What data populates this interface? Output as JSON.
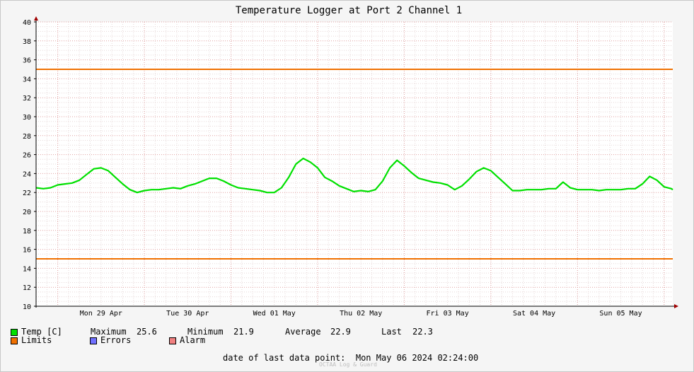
{
  "chart_data": {
    "type": "line",
    "title": "Temperature Logger at Port 2 Channel 1",
    "xlabel": "",
    "ylabel": "",
    "ylim": [
      10,
      40
    ],
    "y_ticks": [
      10,
      12,
      14,
      16,
      18,
      20,
      22,
      24,
      26,
      28,
      30,
      32,
      34,
      36,
      38,
      40
    ],
    "x_start": "2024-04-28 18:00",
    "x_end": "2024-05-06 02:24",
    "x_ticks": [
      {
        "label": "Mon 29 Apr",
        "time": "2024-04-29 12:00"
      },
      {
        "label": "Tue 30 Apr",
        "time": "2024-04-30 12:00"
      },
      {
        "label": "Wed 01 May",
        "time": "2024-05-01 12:00"
      },
      {
        "label": "Thu 02 May",
        "time": "2024-05-02 12:00"
      },
      {
        "label": "Fri 03 May",
        "time": "2024-05-03 12:00"
      },
      {
        "label": "Sat 04 May",
        "time": "2024-05-04 12:00"
      },
      {
        "label": "Sun 05 May",
        "time": "2024-05-05 12:00"
      }
    ],
    "grid": true,
    "series": [
      {
        "name": "Temp [C]",
        "color": "#00e000",
        "points": [
          [
            "2024-04-28 18:00",
            22.5
          ],
          [
            "2024-04-28 20:00",
            22.4
          ],
          [
            "2024-04-28 22:00",
            22.5
          ],
          [
            "2024-04-29 00:00",
            22.8
          ],
          [
            "2024-04-29 02:00",
            22.9
          ],
          [
            "2024-04-29 04:00",
            23.0
          ],
          [
            "2024-04-29 06:00",
            23.3
          ],
          [
            "2024-04-29 08:00",
            23.9
          ],
          [
            "2024-04-29 10:00",
            24.5
          ],
          [
            "2024-04-29 12:00",
            24.6
          ],
          [
            "2024-04-29 14:00",
            24.3
          ],
          [
            "2024-04-29 16:00",
            23.6
          ],
          [
            "2024-04-29 18:00",
            22.9
          ],
          [
            "2024-04-29 20:00",
            22.3
          ],
          [
            "2024-04-29 22:00",
            22.0
          ],
          [
            "2024-04-30 00:00",
            22.2
          ],
          [
            "2024-04-30 02:00",
            22.3
          ],
          [
            "2024-04-30 04:00",
            22.3
          ],
          [
            "2024-04-30 06:00",
            22.4
          ],
          [
            "2024-04-30 08:00",
            22.5
          ],
          [
            "2024-04-30 10:00",
            22.4
          ],
          [
            "2024-04-30 12:00",
            22.7
          ],
          [
            "2024-04-30 14:00",
            22.9
          ],
          [
            "2024-04-30 16:00",
            23.2
          ],
          [
            "2024-04-30 18:00",
            23.5
          ],
          [
            "2024-04-30 20:00",
            23.5
          ],
          [
            "2024-04-30 22:00",
            23.2
          ],
          [
            "2024-05-01 00:00",
            22.8
          ],
          [
            "2024-05-01 02:00",
            22.5
          ],
          [
            "2024-05-01 04:00",
            22.4
          ],
          [
            "2024-05-01 06:00",
            22.3
          ],
          [
            "2024-05-01 08:00",
            22.2
          ],
          [
            "2024-05-01 10:00",
            22.0
          ],
          [
            "2024-05-01 12:00",
            22.0
          ],
          [
            "2024-05-01 14:00",
            22.5
          ],
          [
            "2024-05-01 16:00",
            23.6
          ],
          [
            "2024-05-01 18:00",
            25.0
          ],
          [
            "2024-05-01 20:00",
            25.6
          ],
          [
            "2024-05-01 22:00",
            25.2
          ],
          [
            "2024-05-02 00:00",
            24.6
          ],
          [
            "2024-05-02 02:00",
            23.6
          ],
          [
            "2024-05-02 04:00",
            23.2
          ],
          [
            "2024-05-02 06:00",
            22.7
          ],
          [
            "2024-05-02 08:00",
            22.4
          ],
          [
            "2024-05-02 10:00",
            22.1
          ],
          [
            "2024-05-02 12:00",
            22.2
          ],
          [
            "2024-05-02 14:00",
            22.1
          ],
          [
            "2024-05-02 16:00",
            22.3
          ],
          [
            "2024-05-02 18:00",
            23.2
          ],
          [
            "2024-05-02 20:00",
            24.6
          ],
          [
            "2024-05-02 22:00",
            25.4
          ],
          [
            "2024-05-03 00:00",
            24.8
          ],
          [
            "2024-05-03 02:00",
            24.1
          ],
          [
            "2024-05-03 04:00",
            23.5
          ],
          [
            "2024-05-03 06:00",
            23.3
          ],
          [
            "2024-05-03 08:00",
            23.1
          ],
          [
            "2024-05-03 10:00",
            23.0
          ],
          [
            "2024-05-03 12:00",
            22.8
          ],
          [
            "2024-05-03 14:00",
            22.3
          ],
          [
            "2024-05-03 16:00",
            22.7
          ],
          [
            "2024-05-03 18:00",
            23.4
          ],
          [
            "2024-05-03 20:00",
            24.2
          ],
          [
            "2024-05-03 22:00",
            24.6
          ],
          [
            "2024-05-04 00:00",
            24.3
          ],
          [
            "2024-05-04 02:00",
            23.6
          ],
          [
            "2024-05-04 04:00",
            22.9
          ],
          [
            "2024-05-04 06:00",
            22.2
          ],
          [
            "2024-05-04 08:00",
            22.2
          ],
          [
            "2024-05-04 10:00",
            22.3
          ],
          [
            "2024-05-04 12:00",
            22.3
          ],
          [
            "2024-05-04 14:00",
            22.3
          ],
          [
            "2024-05-04 16:00",
            22.4
          ],
          [
            "2024-05-04 18:00",
            22.4
          ],
          [
            "2024-05-04 20:00",
            23.1
          ],
          [
            "2024-05-04 22:00",
            22.5
          ],
          [
            "2024-05-05 00:00",
            22.3
          ],
          [
            "2024-05-05 02:00",
            22.3
          ],
          [
            "2024-05-05 04:00",
            22.3
          ],
          [
            "2024-05-05 06:00",
            22.2
          ],
          [
            "2024-05-05 08:00",
            22.3
          ],
          [
            "2024-05-05 10:00",
            22.3
          ],
          [
            "2024-05-05 12:00",
            22.3
          ],
          [
            "2024-05-05 14:00",
            22.4
          ],
          [
            "2024-05-05 16:00",
            22.4
          ],
          [
            "2024-05-05 18:00",
            22.9
          ],
          [
            "2024-05-05 20:00",
            23.7
          ],
          [
            "2024-05-05 22:00",
            23.3
          ],
          [
            "2024-05-06 00:00",
            22.6
          ],
          [
            "2024-05-06 02:00",
            22.4
          ],
          [
            "2024-05-06 02:24",
            22.3
          ]
        ]
      },
      {
        "name": "Limits (upper)",
        "color": "#f07000",
        "points": [
          [
            "2024-04-28 18:00",
            35
          ],
          [
            "2024-05-06 02:24",
            35
          ]
        ]
      },
      {
        "name": "Limits (lower)",
        "color": "#f07000",
        "points": [
          [
            "2024-04-28 18:00",
            15
          ],
          [
            "2024-05-06 02:24",
            15
          ]
        ]
      }
    ]
  },
  "legend": {
    "temp": {
      "label": "Temp [C]",
      "color": "#00e000"
    },
    "limits": {
      "label": "Limits",
      "color": "#f07000"
    },
    "errors": {
      "label": "Errors",
      "color": "#7070ff"
    },
    "alarm": {
      "label": "Alarm",
      "color": "#f08080"
    },
    "stats": {
      "maximum_label": "Maximum",
      "maximum": "25.6",
      "minimum_label": "Minimum",
      "minimum": "21.9",
      "average_label": "Average",
      "average": "22.9",
      "last_label": "Last",
      "last": "22.3"
    }
  },
  "footer": {
    "last_point_label": "date of last data point:",
    "last_point_value": "Mon May 06 2024 02:24:00",
    "watermark": "OCTAA Log & Guard"
  }
}
